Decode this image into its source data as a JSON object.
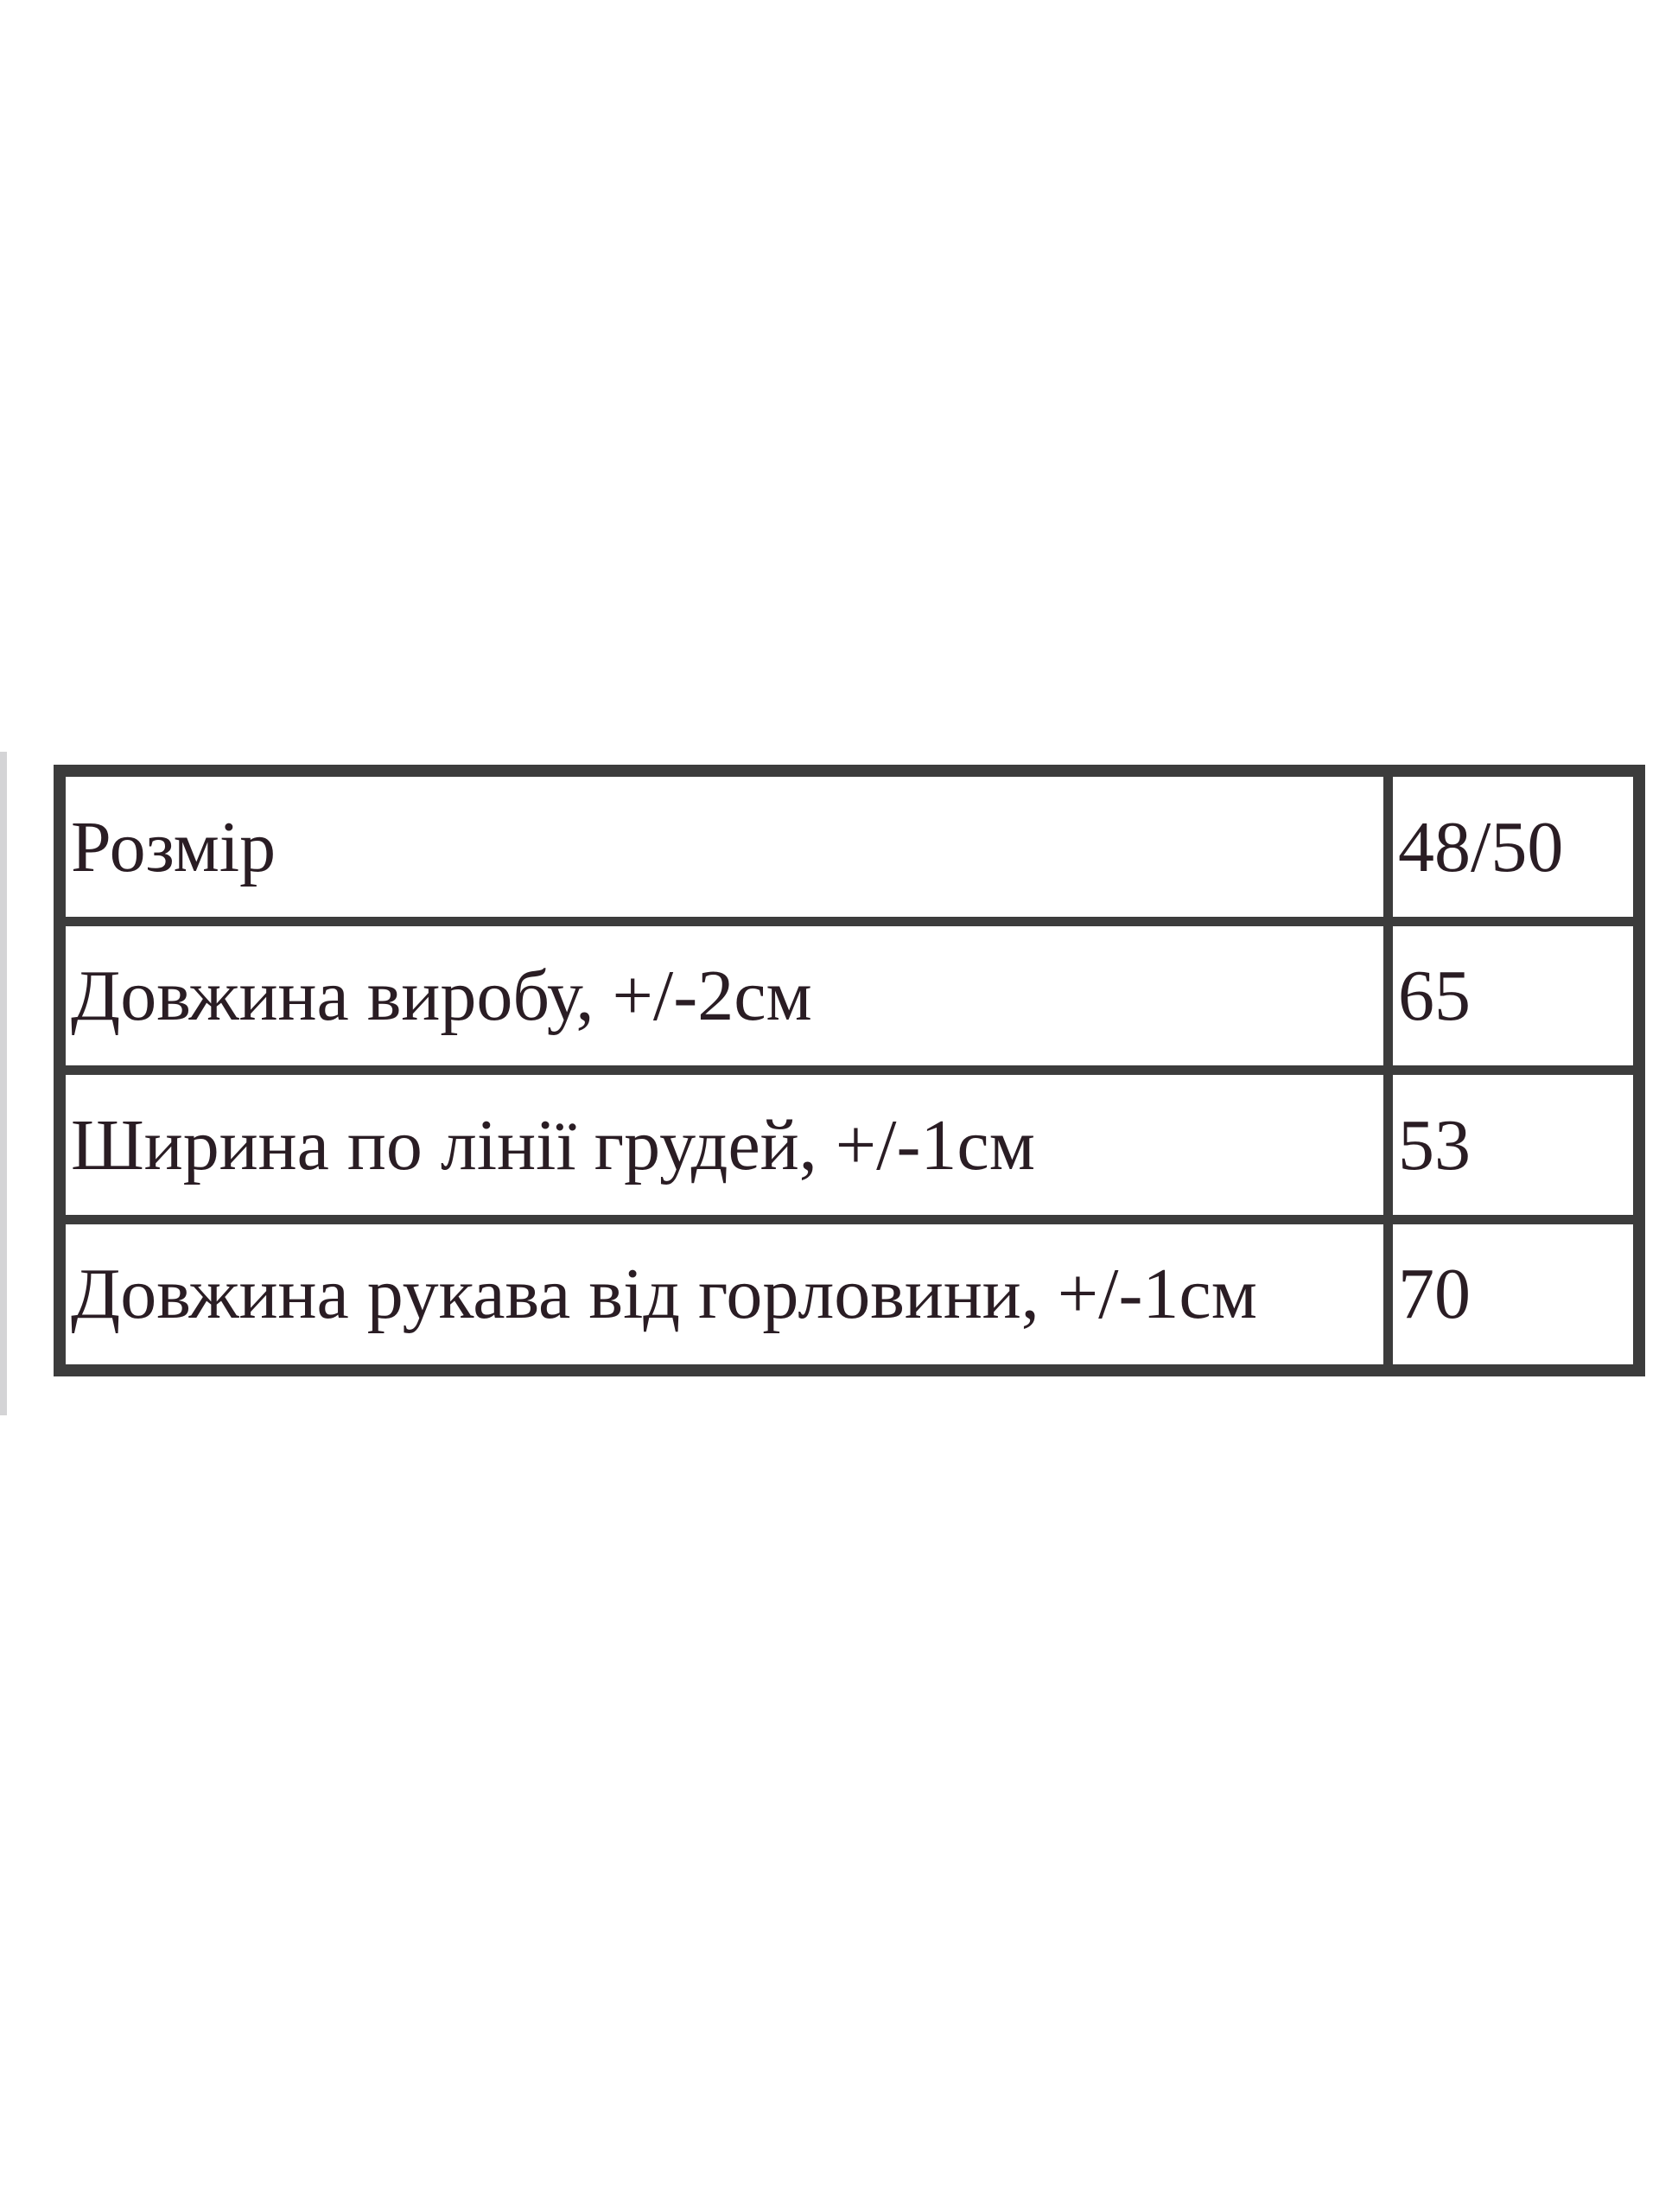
{
  "table": {
    "rows": [
      {
        "label": "Розмір",
        "value": "48/50"
      },
      {
        "label": "Довжина виробу, +/-2см",
        "value": "65"
      },
      {
        "label": "Ширина по лінії грудей, +/-1см",
        "value": "53"
      },
      {
        "label": "Довжина рукава від горловини, +/-1см",
        "value": "70"
      }
    ]
  }
}
